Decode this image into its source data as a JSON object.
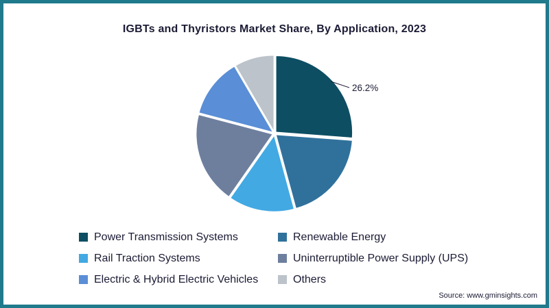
{
  "page": {
    "title": "IGBTs and Thyristors Market Share, By Application, 2023",
    "source": "Source: www.gminsights.com"
  },
  "colors": {
    "border": "#1f7a8c",
    "text": "#1b1b35",
    "background": "#ffffff"
  },
  "chart_data": {
    "type": "pie",
    "title": "IGBTs and Thyristors Market Share, By Application, 2023",
    "legend_position": "bottom",
    "callout": {
      "label": "26.2%",
      "target": "Power Transmission Systems"
    },
    "slices": [
      {
        "label": "Power Transmission Systems",
        "value": 26.2,
        "color": "#0d4e63"
      },
      {
        "label": "Renewable Energy",
        "value": 19.6,
        "color": "#30719c"
      },
      {
        "label": "Rail Traction Systems",
        "value": 13.9,
        "color": "#42a9e3"
      },
      {
        "label": "Uninterruptible Power Supply (UPS)",
        "value": 19.4,
        "color": "#6e7f9e"
      },
      {
        "label": "Electric & Hybrid Electric Vehicles",
        "value": 12.5,
        "color": "#5a8ed6"
      },
      {
        "label": "Others",
        "value": 8.4,
        "color": "#bcc3ca"
      }
    ]
  }
}
